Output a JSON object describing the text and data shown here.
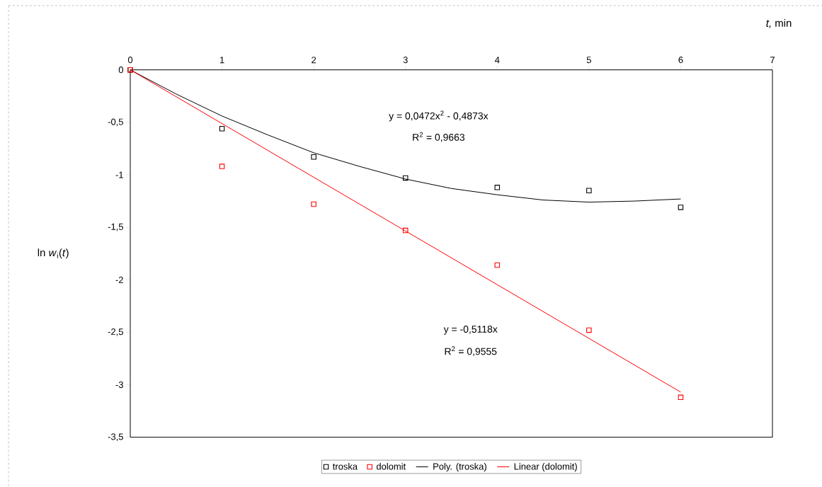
{
  "chart_data": {
    "type": "scatter",
    "xlabel": "*t,* min",
    "ylabel": "ln *w*$_{i}$(*t*)",
    "xlim": [
      0,
      7
    ],
    "xticks": [
      0,
      1,
      2,
      3,
      4,
      5,
      6,
      7
    ],
    "ylim": [
      -3.5,
      0
    ],
    "yticks": [
      {
        "value": 0,
        "label": "0"
      },
      {
        "value": -0.5,
        "label": "-0,5"
      },
      {
        "value": -1,
        "label": "-1"
      },
      {
        "value": -1.5,
        "label": "-1,5"
      },
      {
        "value": -2,
        "label": "-2"
      },
      {
        "value": -2.5,
        "label": "-2,5"
      },
      {
        "value": -3,
        "label": "-3"
      },
      {
        "value": -3.5,
        "label": "-3,5"
      }
    ],
    "grid": false,
    "legend": "bottom",
    "series": [
      {
        "name": "troska",
        "marker": "square",
        "color": "#000000",
        "x": [
          0,
          1,
          2,
          3,
          4,
          5,
          6
        ],
        "values": [
          0,
          -0.56,
          -0.83,
          -1.03,
          -1.12,
          -1.15,
          -1.31
        ]
      },
      {
        "name": "dolomit",
        "marker": "square",
        "color": "#ff0000",
        "x": [
          0,
          1,
          2,
          3,
          4,
          5,
          6
        ],
        "values": [
          0,
          -0.92,
          -1.28,
          -1.53,
          -1.86,
          -2.48,
          -3.12
        ]
      },
      {
        "name": "Poly. (troska)",
        "type": "line",
        "marker": "none",
        "color": "#000000",
        "x": [
          0,
          0.5,
          1,
          1.5,
          2,
          2.5,
          3,
          3.5,
          4,
          4.5,
          5,
          5.5,
          6
        ],
        "values": [
          0,
          -0.23,
          -0.44,
          -0.62,
          -0.79,
          -0.92,
          -1.04,
          -1.13,
          -1.19,
          -1.24,
          -1.26,
          -1.25,
          -1.23
        ]
      },
      {
        "name": "Linear (dolomit)",
        "type": "line",
        "marker": "none",
        "color": "#ff0000",
        "x": [
          0,
          6
        ],
        "values": [
          0,
          -3.07
        ]
      }
    ],
    "annotations": [
      "y = 0,0472x$^{2}$ - 0,4873x",
      "R$^{2}$ = 0,9663",
      "y = -0,5118x",
      "R$^{2}$ = 0,9555"
    ]
  }
}
